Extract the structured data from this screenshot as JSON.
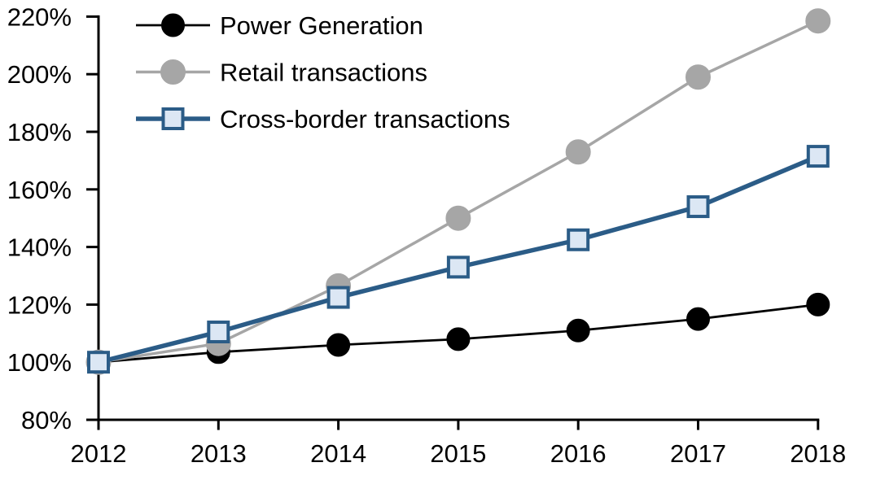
{
  "chart_data": {
    "type": "line",
    "title": "",
    "x_categories": [
      "2012",
      "2013",
      "2014",
      "2015",
      "2016",
      "2017",
      "2018"
    ],
    "series": [
      {
        "name": "Power Generation",
        "color": "#000000",
        "marker": "circle",
        "marker_fill": "#000000",
        "marker_stroke": "#000000",
        "marker_size": 14,
        "line_width": 2.8,
        "values": [
          100,
          103.5,
          106,
          108,
          111,
          115,
          120
        ]
      },
      {
        "name": "Retail transactions",
        "color": "#a6a6a6",
        "marker": "circle",
        "marker_fill": "#a6a6a6",
        "marker_stroke": "#a6a6a6",
        "marker_size": 15,
        "line_width": 3.5,
        "values": [
          100,
          106.5,
          126.5,
          150,
          173,
          199,
          218.5
        ]
      },
      {
        "name": "Cross-border transactions",
        "color": "#2b5c87",
        "marker": "square",
        "marker_fill": "#dce7f4",
        "marker_stroke": "#2b5c87",
        "marker_size": 13,
        "line_width": 5.5,
        "values": [
          100,
          110.5,
          122.5,
          133,
          142.5,
          154,
          171.5
        ]
      }
    ],
    "ylim": [
      80,
      220
    ],
    "ytick_step": 20,
    "ytick_labels": [
      "80%",
      "100%",
      "120%",
      "140%",
      "160%",
      "180%",
      "200%",
      "220%"
    ],
    "xlabel": "",
    "ylabel": "",
    "grid": false,
    "legend_position": "top-left",
    "axis_color": "#000000",
    "background_color": "#ffffff"
  }
}
